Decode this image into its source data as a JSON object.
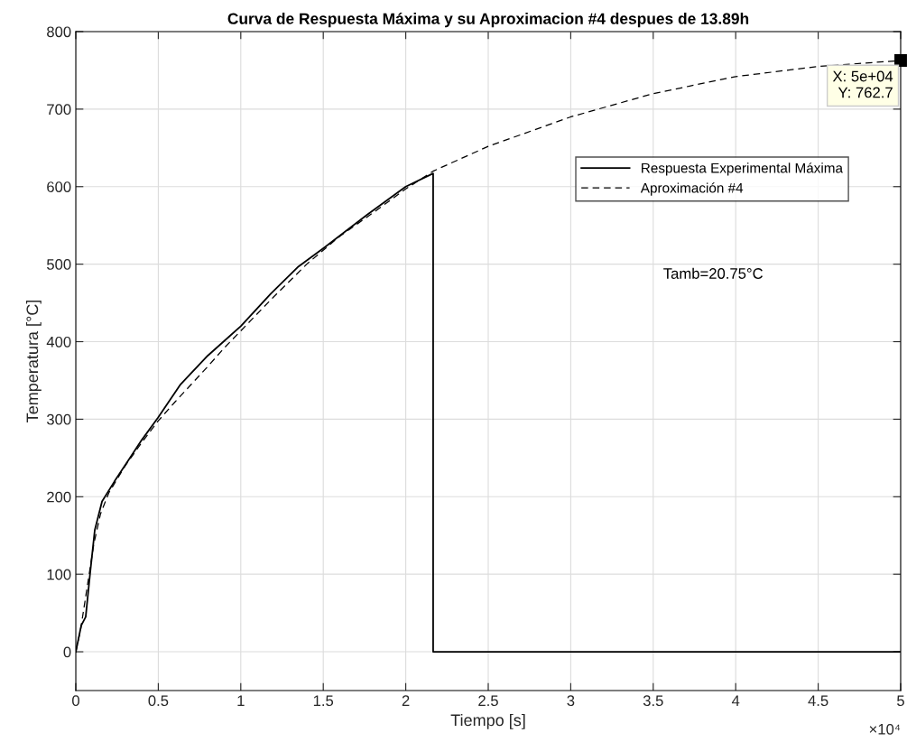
{
  "chart_data": {
    "type": "line",
    "title": "Curva de Respuesta Máxima y su Aproximacion #4 despues de 13.89h",
    "xlabel": "Tiempo [s]",
    "ylabel": "Temperatura [°C]",
    "xlim": [
      0,
      5
    ],
    "ylim": [
      -50,
      800
    ],
    "xticks": [
      0,
      0.5,
      1,
      1.5,
      2,
      2.5,
      3,
      3.5,
      4,
      4.5,
      5
    ],
    "yticks": [
      0,
      100,
      200,
      300,
      400,
      500,
      600,
      700,
      800
    ],
    "grid": true,
    "legend": "top right",
    "series": [
      {
        "name": "Respuesta Experimental Máxima",
        "color": "#000000",
        "line_style": "solid",
        "x": [
          0,
          0.033,
          0.06,
          0.0875,
          0.115,
          0.159,
          0.235,
          0.399,
          0.498,
          0.635,
          0.689,
          0.8,
          1,
          1.182,
          1.35,
          1.51,
          1.767,
          2,
          2.166,
          2.166,
          5
        ],
        "values": [
          0,
          34,
          45,
          103,
          157,
          194,
          220,
          273,
          302,
          345,
          357,
          382,
          420,
          462,
          497,
          522,
          564,
          600,
          617,
          0,
          0
        ]
      },
      {
        "name": "Aproximación #4",
        "color": "#000000",
        "line_style": "dashed",
        "x": [
          0,
          0.03,
          0.07,
          0.11,
          0.15,
          0.2,
          0.3,
          0.4,
          0.5,
          0.6,
          0.7,
          0.8,
          0.9,
          1,
          1.2,
          1.4,
          1.6,
          1.8,
          2,
          2.166,
          2.5,
          3,
          3.5,
          4,
          4.5,
          5
        ],
        "values": [
          0,
          30,
          85,
          140,
          178,
          205,
          240,
          270,
          298,
          322,
          345,
          368,
          392,
          414,
          458,
          500,
          536,
          566,
          597,
          620,
          652,
          690,
          720,
          742,
          755,
          762.7
        ]
      }
    ],
    "annotations": [
      {
        "text": "X: 5e+04\nY: 762.7",
        "x": 5,
        "y": 762.7
      },
      "Tamb=20.75°C",
      "×10⁴"
    ]
  }
}
